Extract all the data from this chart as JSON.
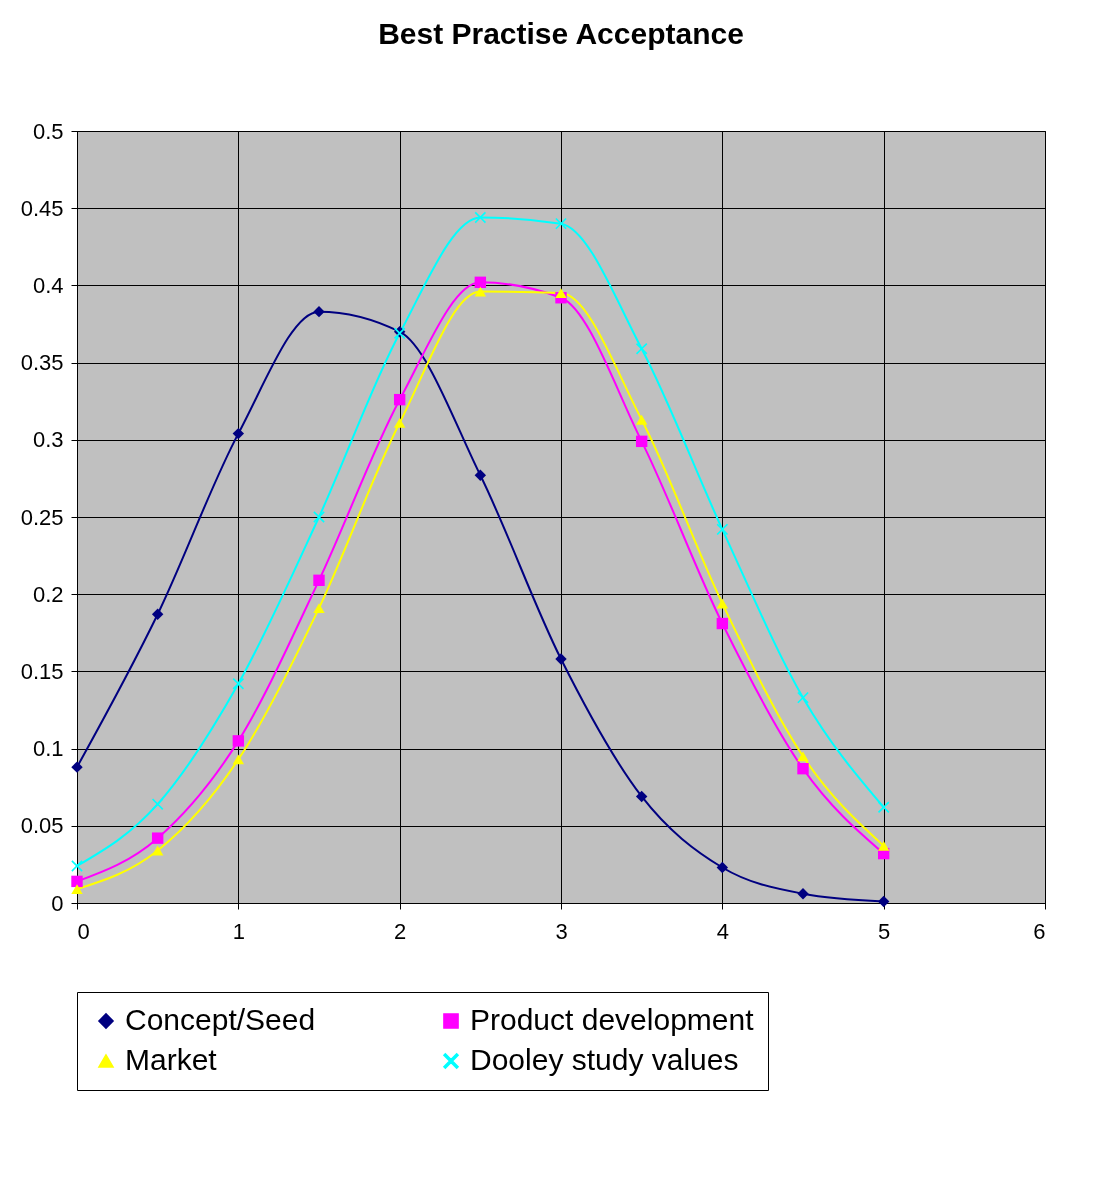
{
  "chart_data": {
    "type": "line",
    "title": "Best Practise Acceptance",
    "x": [
      0,
      0.5,
      1,
      1.5,
      2,
      2.5,
      3,
      3.5,
      4,
      4.5,
      5
    ],
    "series": [
      {
        "name": "Concept/Seed",
        "color": "#000080",
        "marker": "diamond",
        "values": [
          0.088,
          0.187,
          0.304,
          0.383,
          0.37,
          0.277,
          0.158,
          0.069,
          0.023,
          0.006,
          0.001
        ]
      },
      {
        "name": "Product development",
        "color": "#ff00ff",
        "marker": "square",
        "values": [
          0.014,
          0.042,
          0.105,
          0.209,
          0.326,
          0.402,
          0.392,
          0.299,
          0.181,
          0.087,
          0.032
        ]
      },
      {
        "name": "Market",
        "color": "#ffff00",
        "marker": "triangle",
        "values": [
          0.009,
          0.034,
          0.093,
          0.191,
          0.311,
          0.396,
          0.395,
          0.313,
          0.194,
          0.095,
          0.037
        ]
      },
      {
        "name": "Dooley study values",
        "color": "#00ffff",
        "marker": "cross",
        "values": [
          0.024,
          0.064,
          0.142,
          0.25,
          0.369,
          0.444,
          0.44,
          0.359,
          0.242,
          0.133,
          0.062
        ]
      }
    ],
    "xlim": [
      0,
      6
    ],
    "xticks": [
      0,
      1,
      2,
      3,
      4,
      5,
      6
    ],
    "ylim": [
      0,
      0.5
    ],
    "yticks": [
      0,
      0.05,
      0.1,
      0.15,
      0.2,
      0.25,
      0.3,
      0.35,
      0.4,
      0.45,
      0.5
    ],
    "grid": true,
    "legend": "bottom",
    "line_style": "solid"
  }
}
